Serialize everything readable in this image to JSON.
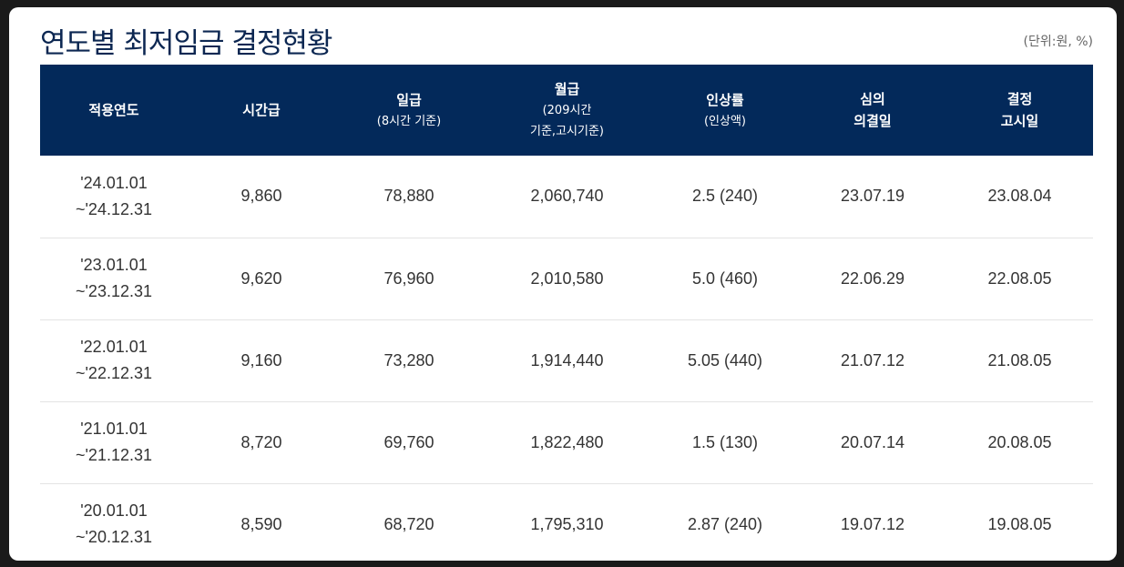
{
  "title": "연도별 최저임금 결정현황",
  "unit_note": "(단위:원, %)",
  "table": {
    "headers": [
      {
        "main": "적용연도",
        "sub": []
      },
      {
        "main": "시간급",
        "sub": []
      },
      {
        "main": "일급",
        "sub": [
          "(8시간 기준)"
        ]
      },
      {
        "main": "월급",
        "sub": [
          "(209시간",
          "기준,고시기준)"
        ]
      },
      {
        "main": "인상률",
        "sub": [
          "(인상액)"
        ]
      },
      {
        "main": "심의",
        "sub": [
          "의결일"
        ],
        "main_bold_sub": true
      },
      {
        "main": "결정",
        "sub": [
          "고시일"
        ],
        "main_bold_sub": true
      }
    ],
    "rows": [
      {
        "period_start": "'24.01.01",
        "period_end": "~'24.12.31",
        "hourly": "9,860",
        "daily": "78,880",
        "monthly": "2,060,740",
        "increase": "2.5 (240)",
        "resolved": "23.07.19",
        "announced": "23.08.04"
      },
      {
        "period_start": "'23.01.01",
        "period_end": "~'23.12.31",
        "hourly": "9,620",
        "daily": "76,960",
        "monthly": "2,010,580",
        "increase": "5.0 (460)",
        "resolved": "22.06.29",
        "announced": "22.08.05"
      },
      {
        "period_start": "'22.01.01",
        "period_end": "~'22.12.31",
        "hourly": "9,160",
        "daily": "73,280",
        "monthly": "1,914,440",
        "increase": "5.05 (440)",
        "resolved": "21.07.12",
        "announced": "21.08.05"
      },
      {
        "period_start": "'21.01.01",
        "period_end": "~'21.12.31",
        "hourly": "8,720",
        "daily": "69,760",
        "monthly": "1,822,480",
        "increase": "1.5 (130)",
        "resolved": "20.07.14",
        "announced": "20.08.05"
      },
      {
        "period_start": "'20.01.01",
        "period_end": "~'20.12.31",
        "hourly": "8,590",
        "daily": "68,720",
        "monthly": "1,795,310",
        "increase": "2.87 (240)",
        "resolved": "19.07.12",
        "announced": "19.08.05"
      }
    ]
  }
}
